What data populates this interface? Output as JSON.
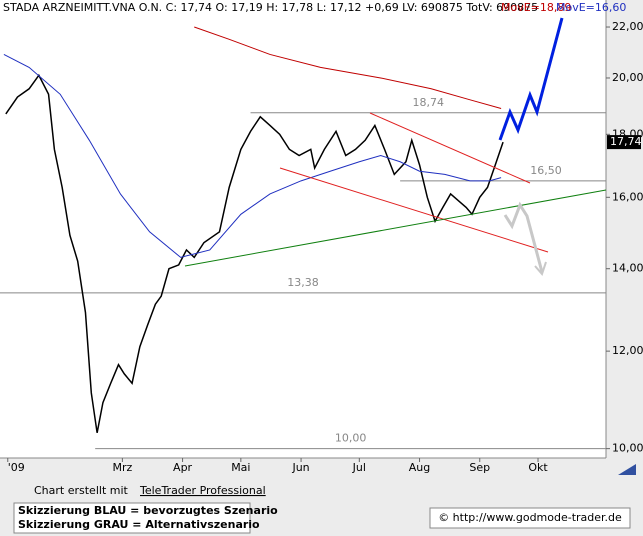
{
  "chart_data": {
    "type": "line",
    "title": "STADA ARZNEIMITT.VNA O.N. C: 17,74 O: 17,19 H: 17,78 L: 17,12 +0,69 LV: 690875 TotV: 690875",
    "log": true,
    "xlim": [
      -4,
      308
    ],
    "ylim": [
      9.9,
      22.5
    ],
    "xticks": [
      {
        "value": 0,
        "label": "'09"
      },
      {
        "value": 59,
        "label": "Mrz"
      },
      {
        "value": 90,
        "label": "Apr"
      },
      {
        "value": 120,
        "label": "Mai"
      },
      {
        "value": 151,
        "label": "Jun"
      },
      {
        "value": 181,
        "label": "Jul"
      },
      {
        "value": 212,
        "label": "Aug"
      },
      {
        "value": 243,
        "label": "Sep"
      },
      {
        "value": 273,
        "label": "Okt"
      }
    ],
    "yticks": [
      {
        "value": 10,
        "label": "10,00"
      },
      {
        "value": 12,
        "label": "12,00"
      },
      {
        "value": 14,
        "label": "14,00"
      },
      {
        "value": 16,
        "label": "16,00"
      },
      {
        "value": 18,
        "label": "18,00"
      },
      {
        "value": 20,
        "label": "20,00"
      },
      {
        "value": 22,
        "label": "22,00"
      }
    ],
    "last_price": {
      "value": 17.74,
      "label": "17,74"
    },
    "levels": [
      {
        "value": 18.74,
        "label": "18,74",
        "from": 125
      },
      {
        "value": 16.5,
        "label": "16,50",
        "from": 202
      },
      {
        "value": 13.38,
        "label": "13,38",
        "from": -4
      },
      {
        "value": 10,
        "label": "10,00",
        "from": 45
      }
    ],
    "series": [
      {
        "color": "#000000",
        "x": [
          -1,
          5,
          11,
          16,
          21,
          24,
          28,
          32,
          36,
          40,
          43,
          46,
          49,
          53,
          57,
          60,
          64,
          68,
          72,
          76,
          79,
          83,
          88,
          92,
          96,
          101,
          109,
          114,
          120,
          125,
          130,
          135,
          140,
          145,
          150,
          156,
          158,
          163,
          169,
          174,
          179,
          184,
          189,
          194,
          199,
          205,
          208,
          212,
          216,
          220,
          224,
          228,
          232,
          236,
          239,
          243,
          247,
          251,
          255
        ],
        "values": [
          18.7,
          19.3,
          19.6,
          20.1,
          19.4,
          17.5,
          16.3,
          14.9,
          14.2,
          12.9,
          11.1,
          10.3,
          10.9,
          11.3,
          11.7,
          11.5,
          11.3,
          12.1,
          12.6,
          13.1,
          13.3,
          14.0,
          14.1,
          14.5,
          14.3,
          14.7,
          15.0,
          16.3,
          17.5,
          18.1,
          18.6,
          18.3,
          18.0,
          17.5,
          17.3,
          17.5,
          16.9,
          17.5,
          18.1,
          17.3,
          17.5,
          17.8,
          18.3,
          17.5,
          16.7,
          17.1,
          17.8,
          17.0,
          16.0,
          15.3,
          15.7,
          16.1,
          15.9,
          15.7,
          15.5,
          16.0,
          16.3,
          17.0,
          17.74
        ]
      },
      {
        "name": "MovE=18,89",
        "color": "#c00000",
        "x": [
          96,
          114,
          135,
          161,
          192,
          218,
          238,
          254
        ],
        "values": [
          22.0,
          21.5,
          20.9,
          20.4,
          20.0,
          19.6,
          19.2,
          18.89
        ]
      },
      {
        "name": "MovE=16,60",
        "color": "#2030c0",
        "x": [
          -2,
          11,
          27,
          42,
          58,
          73,
          89,
          104,
          120,
          135,
          151,
          166,
          181,
          192,
          202,
          212,
          225,
          238,
          248,
          254
        ],
        "values": [
          20.9,
          20.4,
          19.4,
          17.8,
          16.1,
          15.0,
          14.3,
          14.5,
          15.5,
          16.1,
          16.5,
          16.8,
          17.1,
          17.3,
          17.1,
          16.8,
          16.7,
          16.5,
          16.5,
          16.6
        ]
      }
    ]
  },
  "footer": {
    "credit": "Chart erstellt mit",
    "link": "TeleTrader Professional",
    "notes": [
      "Skizzierung BLAU = bevorzugtes Szenario",
      "Skizzierung GRAU = Alternativszenario"
    ],
    "copyright": "© http://www.godmode-trader.de"
  }
}
